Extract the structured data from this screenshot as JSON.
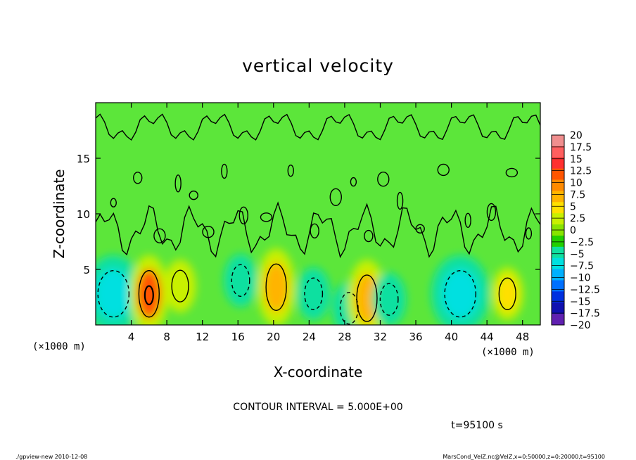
{
  "chart_data": {
    "type": "heatmap",
    "title": "vertical velocity",
    "xlabel": "X-coordinate",
    "ylabel": "Z-coordinate",
    "x_unit_label": "(×1000 m)",
    "y_unit_label": "(×1000 m)",
    "xlim": [
      0,
      50
    ],
    "ylim": [
      0,
      20
    ],
    "x_ticks": [
      4,
      8,
      12,
      16,
      20,
      24,
      28,
      32,
      36,
      40,
      44,
      48
    ],
    "y_ticks": [
      5,
      10,
      15
    ],
    "contour_interval_text": "CONTOUR INTERVAL = 5.000E+00",
    "time_text": "t=95100 s",
    "colorbar": {
      "levels": [
        20,
        17.5,
        15,
        12.5,
        10,
        7.5,
        5,
        2.5,
        0,
        -2.5,
        -5,
        -7.5,
        -10,
        -12.5,
        -15,
        -17.5,
        -20
      ],
      "colors": [
        "#f08e8e",
        "#ff5f5f",
        "#ff3030",
        "#ff5500",
        "#ff8a00",
        "#ffb400",
        "#ffe000",
        "#c8f000",
        "#88e400",
        "#22d000",
        "#10e0a0",
        "#00e0e0",
        "#00b0ff",
        "#0070ff",
        "#0030e0",
        "#1010b0",
        "#6020b0"
      ]
    },
    "features": [
      {
        "x": 2.0,
        "z": 2.8,
        "value": -7.5,
        "kind": "downdraft"
      },
      {
        "x": 6.0,
        "z": 2.8,
        "value": 12.5,
        "kind": "updraft"
      },
      {
        "x": 9.5,
        "z": 3.5,
        "value": 2.5,
        "kind": "updraft"
      },
      {
        "x": 16.3,
        "z": 4.0,
        "value": -5,
        "kind": "downdraft"
      },
      {
        "x": 20.3,
        "z": 3.4,
        "value": 7.5,
        "kind": "updraft"
      },
      {
        "x": 24.5,
        "z": 2.8,
        "value": -5,
        "kind": "downdraft"
      },
      {
        "x": 28.5,
        "z": 1.5,
        "value": -5,
        "kind": "downdraft"
      },
      {
        "x": 30.5,
        "z": 2.4,
        "value": 7.5,
        "kind": "updraft"
      },
      {
        "x": 33.0,
        "z": 2.3,
        "value": -5,
        "kind": "downdraft"
      },
      {
        "x": 41.0,
        "z": 2.8,
        "value": -7.5,
        "kind": "downdraft"
      },
      {
        "x": 46.3,
        "z": 2.8,
        "value": 5,
        "kind": "updraft"
      }
    ]
  },
  "footer": {
    "left": "./gpview-new   2010-12-08",
    "right": "MarsCond_VelZ.nc@VelZ,x=0:50000,z=0:20000,t=95100"
  }
}
